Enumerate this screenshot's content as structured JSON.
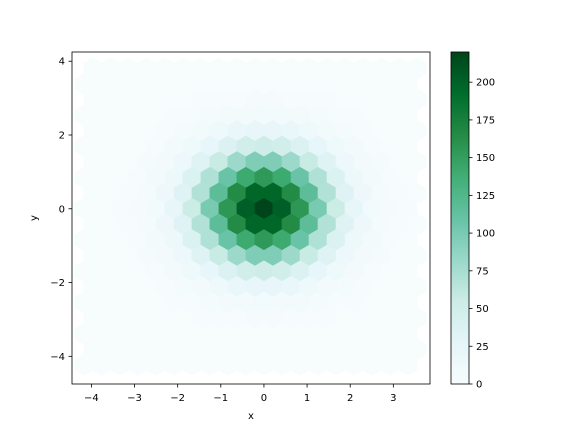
{
  "chart_data": {
    "type": "heatmap",
    "subtype": "hexbin",
    "title": "",
    "xlabel": "x",
    "ylabel": "y",
    "xlim": [
      -4.45,
      3.85
    ],
    "ylim": [
      -4.75,
      4.25
    ],
    "xticks": [
      -4,
      -3,
      -2,
      -1,
      0,
      1,
      2,
      3
    ],
    "yticks": [
      -4,
      -2,
      0,
      2,
      4
    ],
    "xtick_labels": [
      "−4",
      "−3",
      "−2",
      "−1",
      "0",
      "1",
      "2",
      "3"
    ],
    "ytick_labels": [
      "−4",
      "−2",
      "0",
      "2",
      "4"
    ],
    "colormap": "BuGn",
    "colormap_stops": [
      "#f7fcfd",
      "#e5f5f9",
      "#ccece6",
      "#99d8c9",
      "#66c2a4",
      "#41ae76",
      "#238b45",
      "#006d2c",
      "#00441b"
    ],
    "color_range": [
      0,
      220
    ],
    "colorbar": {
      "ticks": [
        0,
        25,
        50,
        75,
        100,
        125,
        150,
        175,
        200
      ],
      "tick_labels": [
        "0",
        "25",
        "50",
        "75",
        "100",
        "125",
        "150",
        "175",
        "200"
      ],
      "position": "right"
    },
    "grid": false,
    "distribution": {
      "center": [
        0,
        0
      ],
      "spread": [
        1.0,
        1.0
      ],
      "peak_count": 220
    }
  }
}
